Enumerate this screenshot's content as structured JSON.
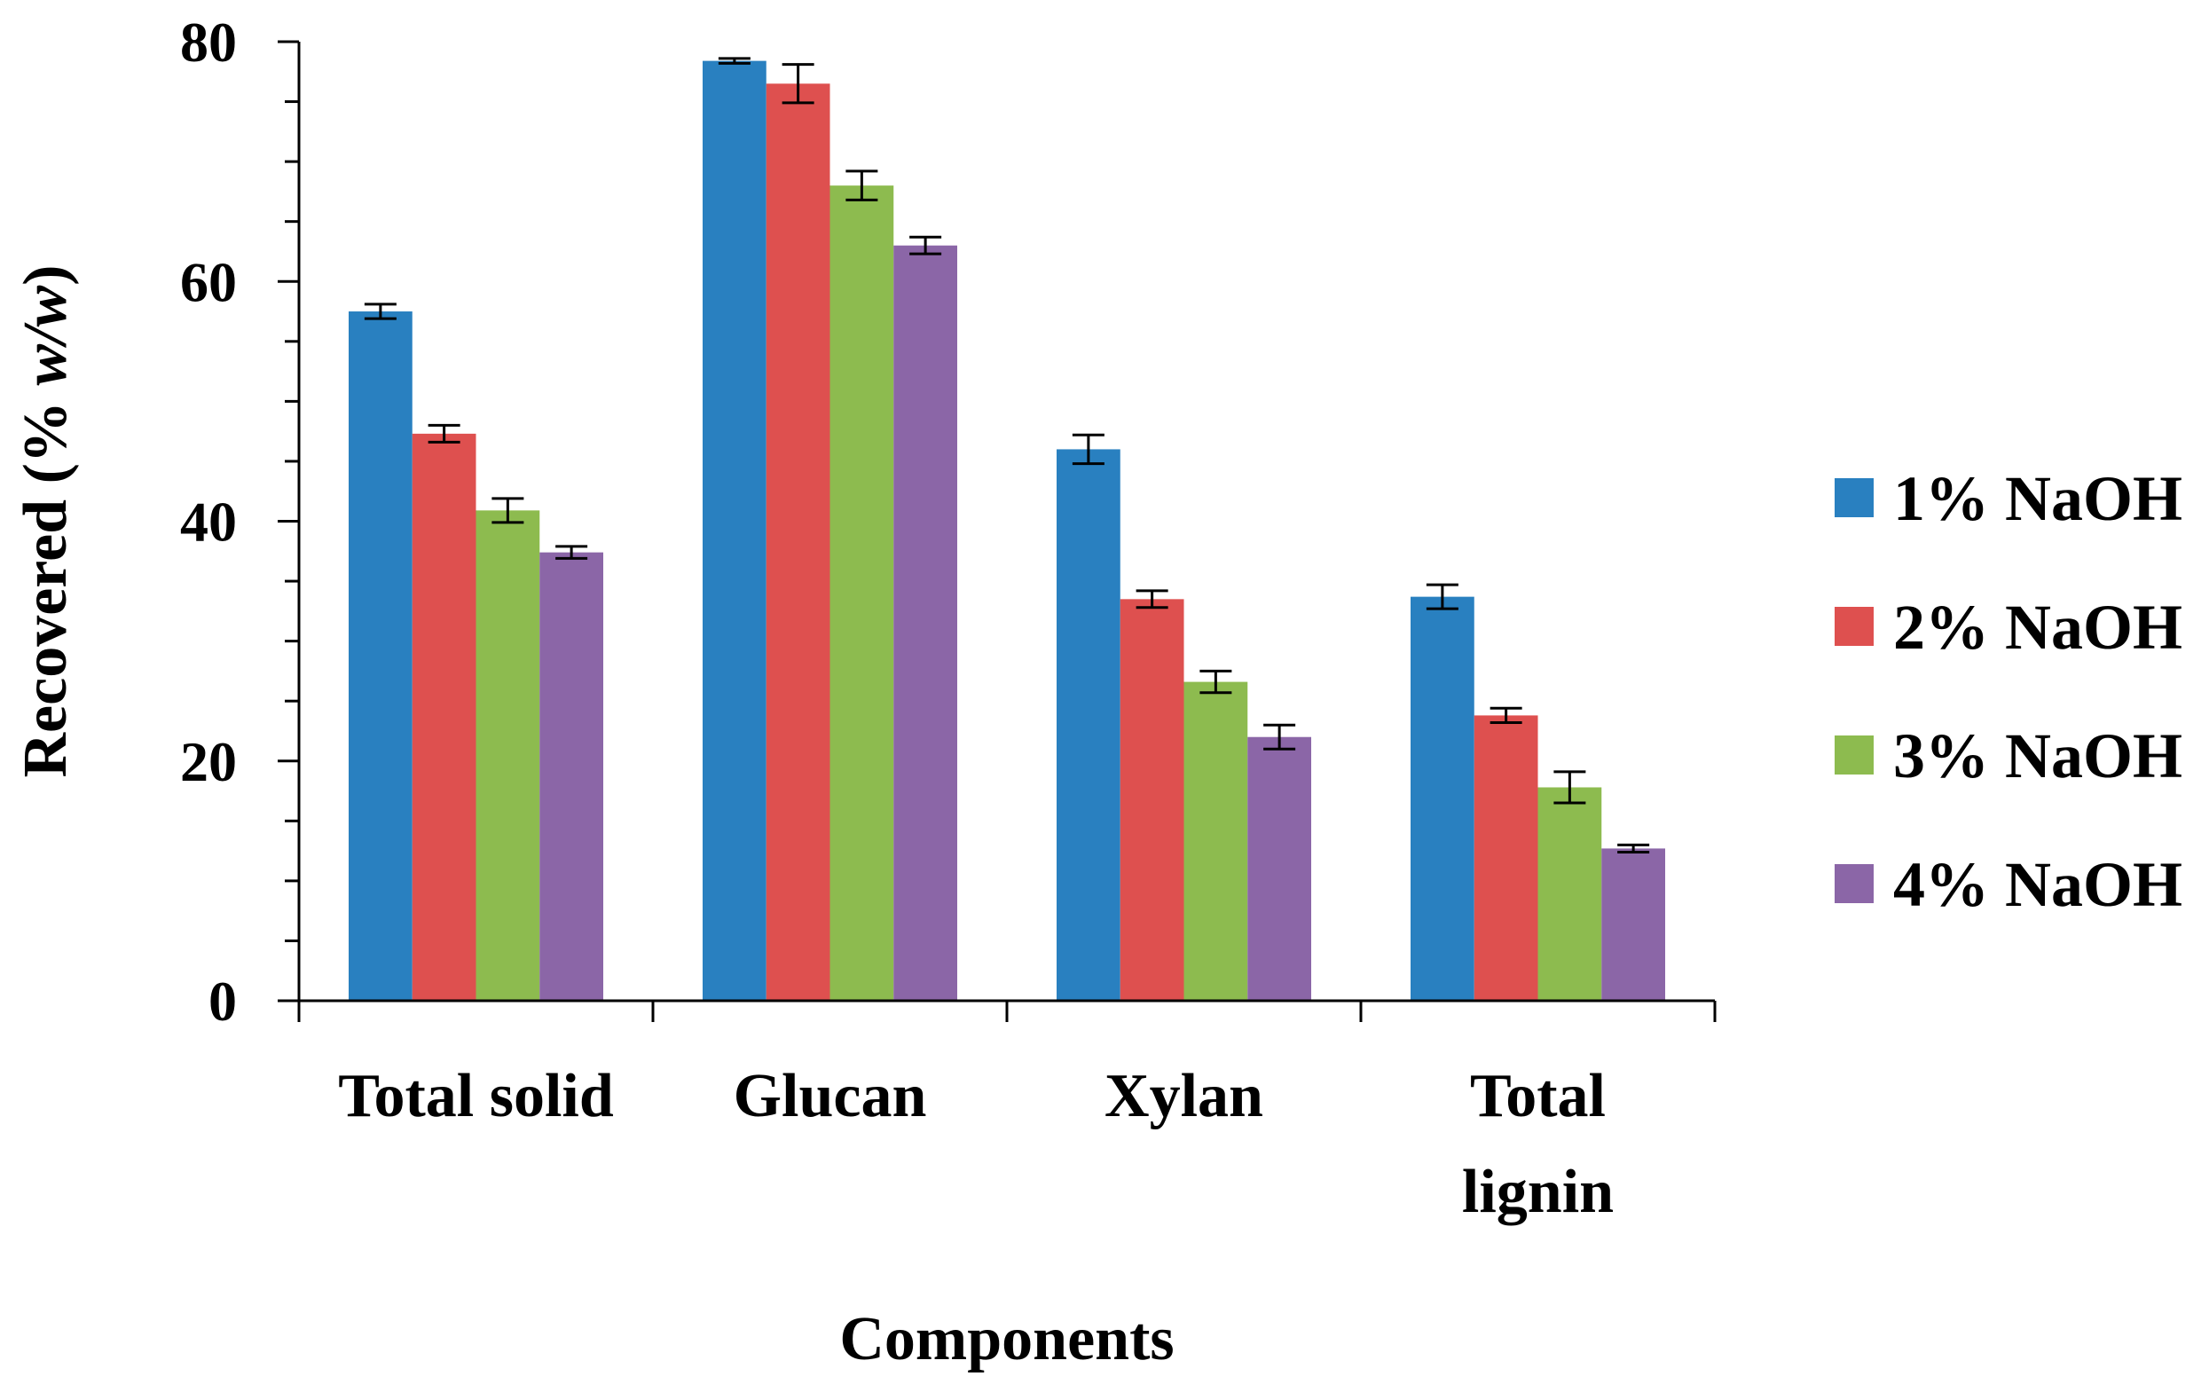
{
  "chart_data": {
    "type": "bar",
    "categories": [
      [
        "Total solid"
      ],
      [
        "Glucan"
      ],
      [
        "Xylan"
      ],
      [
        "Total",
        "lignin"
      ]
    ],
    "series": [
      {
        "name": "1% NaOH",
        "color": "#2980C0",
        "values": [
          57.5,
          78.4,
          46.0,
          33.7
        ],
        "errors": [
          0.6,
          0.2,
          1.2,
          1.0
        ]
      },
      {
        "name": "2% NaOH",
        "color": "#DE504F",
        "values": [
          47.3,
          76.5,
          33.5,
          23.8
        ],
        "errors": [
          0.7,
          1.6,
          0.7,
          0.6
        ]
      },
      {
        "name": "3% NaOH",
        "color": "#8DBB4F",
        "values": [
          40.9,
          68.0,
          26.6,
          17.8
        ],
        "errors": [
          1.0,
          1.2,
          0.9,
          1.3
        ]
      },
      {
        "name": "4% NaOH",
        "color": "#8B66A7",
        "values": [
          37.4,
          63.0,
          22.0,
          12.7
        ],
        "errors": [
          0.5,
          0.7,
          1.0,
          0.3
        ]
      }
    ],
    "ylabel_main": "Recovered (% ",
    "ylabel_italic": "w/w",
    "ylabel_close": ")",
    "xlabel": "Components",
    "ylim": [
      0,
      80
    ],
    "yticks": [
      0,
      20,
      40,
      60,
      80
    ],
    "y_minor_step": 5,
    "legend_position": "right",
    "grid": false
  }
}
